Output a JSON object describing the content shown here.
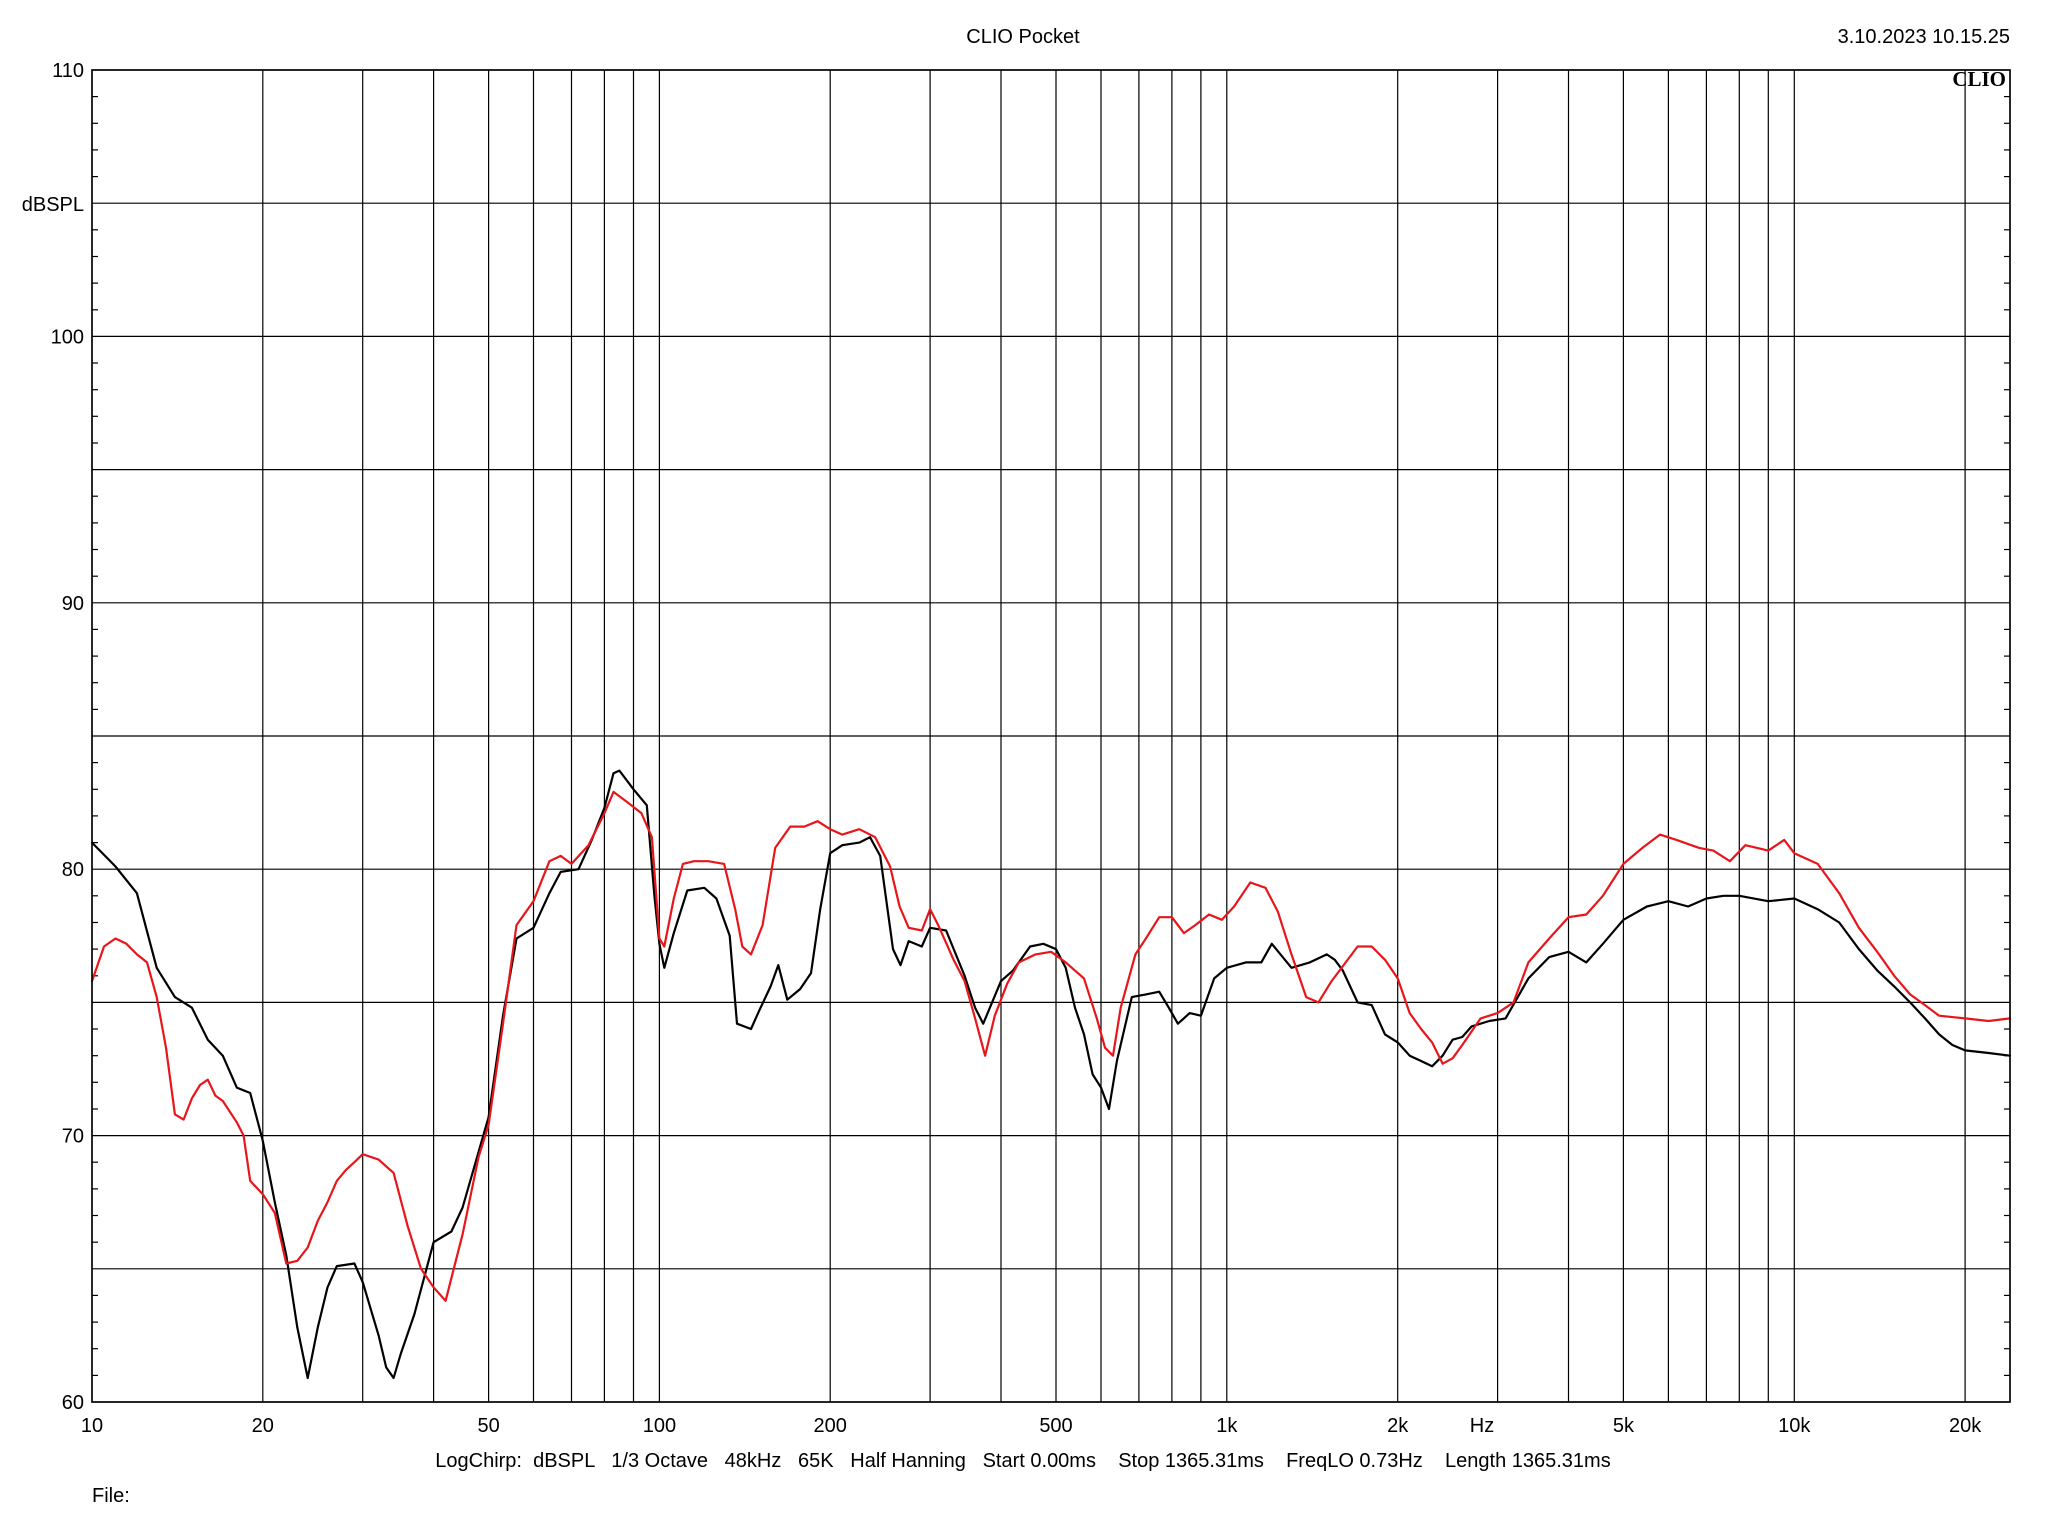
{
  "header": {
    "app_title": "CLIO Pocket",
    "timestamp": "3.10.2023 10.15.25",
    "logo_text": "CLIO"
  },
  "footer": {
    "settings_line": "LogChirp:  dBSPL   1/3 Octave   48kHz   65K   Half Hanning   Start 0.00ms    Stop 1365.31ms    FreqLO 0.73Hz    Length 1365.31ms",
    "file_label": "File:"
  },
  "chart_data": {
    "type": "line",
    "xscale": "log",
    "xlim": [
      10,
      24000
    ],
    "ylim": [
      60,
      110
    ],
    "ylabel": "dBSPL",
    "xunit_label": "Hz",
    "grid": true,
    "x_tick_labels": [
      {
        "value": 10,
        "label": "10"
      },
      {
        "value": 20,
        "label": "20"
      },
      {
        "value": 50,
        "label": "50"
      },
      {
        "value": 100,
        "label": "100"
      },
      {
        "value": 200,
        "label": "200"
      },
      {
        "value": 500,
        "label": "500"
      },
      {
        "value": 1000,
        "label": "1k"
      },
      {
        "value": 2000,
        "label": "2k"
      },
      {
        "value": 5000,
        "label": "5k"
      },
      {
        "value": 10000,
        "label": "10k"
      },
      {
        "value": 20000,
        "label": "20k"
      }
    ],
    "y_tick_labels": [
      {
        "value": 60,
        "label": "60"
      },
      {
        "value": 70,
        "label": "70"
      },
      {
        "value": 80,
        "label": "80"
      },
      {
        "value": 90,
        "label": "90"
      },
      {
        "value": 100,
        "label": "100"
      },
      {
        "value": 110,
        "label": "110"
      }
    ],
    "y_grid_values": [
      60,
      65,
      70,
      75,
      80,
      85,
      90,
      95,
      100,
      105,
      110
    ],
    "x_grid_values": [
      10,
      20,
      30,
      40,
      50,
      60,
      70,
      80,
      90,
      100,
      200,
      300,
      400,
      500,
      600,
      700,
      800,
      900,
      1000,
      2000,
      3000,
      4000,
      5000,
      6000,
      7000,
      8000,
      9000,
      10000,
      20000,
      24000
    ],
    "series": [
      {
        "color": "#000000",
        "points": [
          [
            10,
            81.0
          ],
          [
            11,
            80.1
          ],
          [
            12,
            79.1
          ],
          [
            13,
            76.3
          ],
          [
            14,
            75.2
          ],
          [
            15,
            74.8
          ],
          [
            16,
            73.6
          ],
          [
            17,
            73.0
          ],
          [
            18,
            71.8
          ],
          [
            19,
            71.6
          ],
          [
            20,
            69.8
          ],
          [
            21,
            67.5
          ],
          [
            22,
            65.5
          ],
          [
            23,
            62.8
          ],
          [
            24,
            60.9
          ],
          [
            25,
            62.8
          ],
          [
            26,
            64.3
          ],
          [
            27,
            65.1
          ],
          [
            29,
            65.2
          ],
          [
            30,
            64.5
          ],
          [
            32,
            62.5
          ],
          [
            33,
            61.3
          ],
          [
            34,
            60.9
          ],
          [
            35,
            61.8
          ],
          [
            37,
            63.3
          ],
          [
            40,
            66.0
          ],
          [
            43,
            66.4
          ],
          [
            45,
            67.3
          ],
          [
            50,
            70.7
          ],
          [
            53,
            74.5
          ],
          [
            56,
            77.4
          ],
          [
            60,
            77.8
          ],
          [
            64,
            79.1
          ],
          [
            67,
            79.9
          ],
          [
            72,
            80.0
          ],
          [
            76,
            81.1
          ],
          [
            80,
            82.3
          ],
          [
            83,
            83.6
          ],
          [
            85,
            83.7
          ],
          [
            90,
            83.0
          ],
          [
            95,
            82.4
          ],
          [
            98,
            79.0
          ],
          [
            100,
            77.2
          ],
          [
            102,
            76.3
          ],
          [
            106,
            77.6
          ],
          [
            112,
            79.2
          ],
          [
            120,
            79.3
          ],
          [
            126,
            78.9
          ],
          [
            133,
            77.5
          ],
          [
            137,
            74.2
          ],
          [
            145,
            74.0
          ],
          [
            150,
            74.7
          ],
          [
            157,
            75.6
          ],
          [
            162,
            76.4
          ],
          [
            168,
            75.1
          ],
          [
            177,
            75.5
          ],
          [
            185,
            76.1
          ],
          [
            192,
            78.5
          ],
          [
            200,
            80.6
          ],
          [
            210,
            80.9
          ],
          [
            225,
            81.0
          ],
          [
            235,
            81.2
          ],
          [
            245,
            80.5
          ],
          [
            258,
            77.0
          ],
          [
            266,
            76.4
          ],
          [
            275,
            77.3
          ],
          [
            290,
            77.1
          ],
          [
            300,
            77.8
          ],
          [
            320,
            77.7
          ],
          [
            345,
            76.0
          ],
          [
            360,
            74.8
          ],
          [
            372,
            74.2
          ],
          [
            400,
            75.8
          ],
          [
            420,
            76.2
          ],
          [
            450,
            77.1
          ],
          [
            475,
            77.2
          ],
          [
            500,
            77.0
          ],
          [
            520,
            76.3
          ],
          [
            540,
            74.8
          ],
          [
            560,
            73.8
          ],
          [
            580,
            72.3
          ],
          [
            600,
            71.8
          ],
          [
            620,
            71.0
          ],
          [
            640,
            72.8
          ],
          [
            680,
            75.2
          ],
          [
            720,
            75.3
          ],
          [
            760,
            75.4
          ],
          [
            790,
            74.8
          ],
          [
            820,
            74.2
          ],
          [
            860,
            74.6
          ],
          [
            900,
            74.5
          ],
          [
            950,
            75.9
          ],
          [
            1000,
            76.3
          ],
          [
            1080,
            76.5
          ],
          [
            1150,
            76.5
          ],
          [
            1200,
            77.2
          ],
          [
            1300,
            76.3
          ],
          [
            1400,
            76.5
          ],
          [
            1500,
            76.8
          ],
          [
            1550,
            76.6
          ],
          [
            1600,
            76.2
          ],
          [
            1700,
            75.0
          ],
          [
            1800,
            74.9
          ],
          [
            1900,
            73.8
          ],
          [
            2000,
            73.5
          ],
          [
            2100,
            73.0
          ],
          [
            2200,
            72.8
          ],
          [
            2300,
            72.6
          ],
          [
            2400,
            73.0
          ],
          [
            2500,
            73.6
          ],
          [
            2600,
            73.7
          ],
          [
            2700,
            74.1
          ],
          [
            2900,
            74.3
          ],
          [
            3100,
            74.4
          ],
          [
            3400,
            75.9
          ],
          [
            3700,
            76.7
          ],
          [
            4000,
            76.9
          ],
          [
            4300,
            76.5
          ],
          [
            4600,
            77.2
          ],
          [
            5000,
            78.1
          ],
          [
            5500,
            78.6
          ],
          [
            6000,
            78.8
          ],
          [
            6500,
            78.6
          ],
          [
            7000,
            78.9
          ],
          [
            7500,
            79.0
          ],
          [
            8000,
            79.0
          ],
          [
            9000,
            78.8
          ],
          [
            10000,
            78.9
          ],
          [
            11000,
            78.5
          ],
          [
            12000,
            78.0
          ],
          [
            13000,
            77.0
          ],
          [
            14000,
            76.2
          ],
          [
            15000,
            75.6
          ],
          [
            16000,
            75.0
          ],
          [
            17000,
            74.4
          ],
          [
            18000,
            73.8
          ],
          [
            19000,
            73.4
          ],
          [
            20000,
            73.2
          ],
          [
            22000,
            73.1
          ],
          [
            24000,
            73.0
          ]
        ]
      },
      {
        "color": "#e8161a",
        "points": [
          [
            10,
            75.8
          ],
          [
            10.5,
            77.1
          ],
          [
            11,
            77.4
          ],
          [
            11.5,
            77.2
          ],
          [
            12,
            76.8
          ],
          [
            12.5,
            76.5
          ],
          [
            13,
            75.2
          ],
          [
            13.5,
            73.3
          ],
          [
            14,
            70.8
          ],
          [
            14.5,
            70.6
          ],
          [
            15,
            71.4
          ],
          [
            15.5,
            71.9
          ],
          [
            16,
            72.1
          ],
          [
            16.5,
            71.5
          ],
          [
            17,
            71.3
          ],
          [
            18,
            70.5
          ],
          [
            18.5,
            70.0
          ],
          [
            19,
            68.3
          ],
          [
            20,
            67.8
          ],
          [
            21,
            67.1
          ],
          [
            22,
            65.2
          ],
          [
            23,
            65.3
          ],
          [
            24,
            65.8
          ],
          [
            25,
            66.8
          ],
          [
            26,
            67.5
          ],
          [
            27,
            68.3
          ],
          [
            28,
            68.7
          ],
          [
            29,
            69.0
          ],
          [
            30,
            69.3
          ],
          [
            32,
            69.1
          ],
          [
            34,
            68.6
          ],
          [
            36,
            66.6
          ],
          [
            38,
            65.0
          ],
          [
            40,
            64.3
          ],
          [
            42,
            63.8
          ],
          [
            45,
            66.3
          ],
          [
            48,
            69.2
          ],
          [
            50,
            70.4
          ],
          [
            53,
            74.2
          ],
          [
            56,
            77.9
          ],
          [
            60,
            78.8
          ],
          [
            64,
            80.3
          ],
          [
            67,
            80.5
          ],
          [
            70,
            80.2
          ],
          [
            75,
            80.9
          ],
          [
            80,
            82.1
          ],
          [
            83,
            82.9
          ],
          [
            88,
            82.5
          ],
          [
            93,
            82.1
          ],
          [
            97,
            81.2
          ],
          [
            100,
            77.4
          ],
          [
            102,
            77.1
          ],
          [
            106,
            78.9
          ],
          [
            110,
            80.2
          ],
          [
            115,
            80.3
          ],
          [
            122,
            80.3
          ],
          [
            130,
            80.2
          ],
          [
            136,
            78.5
          ],
          [
            140,
            77.1
          ],
          [
            145,
            76.8
          ],
          [
            152,
            77.9
          ],
          [
            160,
            80.8
          ],
          [
            170,
            81.6
          ],
          [
            180,
            81.6
          ],
          [
            190,
            81.8
          ],
          [
            200,
            81.5
          ],
          [
            210,
            81.3
          ],
          [
            225,
            81.5
          ],
          [
            240,
            81.2
          ],
          [
            255,
            80.1
          ],
          [
            265,
            78.6
          ],
          [
            275,
            77.8
          ],
          [
            290,
            77.7
          ],
          [
            300,
            78.5
          ],
          [
            310,
            77.9
          ],
          [
            330,
            76.6
          ],
          [
            345,
            75.8
          ],
          [
            360,
            74.4
          ],
          [
            375,
            73.0
          ],
          [
            390,
            74.5
          ],
          [
            410,
            75.7
          ],
          [
            430,
            76.5
          ],
          [
            460,
            76.8
          ],
          [
            490,
            76.9
          ],
          [
            520,
            76.5
          ],
          [
            560,
            75.9
          ],
          [
            590,
            74.4
          ],
          [
            610,
            73.3
          ],
          [
            630,
            73.0
          ],
          [
            650,
            74.8
          ],
          [
            690,
            76.8
          ],
          [
            720,
            77.4
          ],
          [
            760,
            78.2
          ],
          [
            800,
            78.2
          ],
          [
            840,
            77.6
          ],
          [
            880,
            77.9
          ],
          [
            930,
            78.3
          ],
          [
            980,
            78.1
          ],
          [
            1030,
            78.6
          ],
          [
            1100,
            79.5
          ],
          [
            1170,
            79.3
          ],
          [
            1230,
            78.4
          ],
          [
            1300,
            76.8
          ],
          [
            1380,
            75.2
          ],
          [
            1450,
            75.0
          ],
          [
            1530,
            75.8
          ],
          [
            1620,
            76.5
          ],
          [
            1700,
            77.1
          ],
          [
            1800,
            77.1
          ],
          [
            1900,
            76.6
          ],
          [
            2000,
            75.9
          ],
          [
            2100,
            74.6
          ],
          [
            2200,
            74.0
          ],
          [
            2300,
            73.5
          ],
          [
            2400,
            72.7
          ],
          [
            2500,
            72.9
          ],
          [
            2600,
            73.4
          ],
          [
            2800,
            74.4
          ],
          [
            3000,
            74.6
          ],
          [
            3200,
            75.0
          ],
          [
            3400,
            76.5
          ],
          [
            3700,
            77.4
          ],
          [
            4000,
            78.2
          ],
          [
            4300,
            78.3
          ],
          [
            4600,
            79.0
          ],
          [
            5000,
            80.2
          ],
          [
            5400,
            80.8
          ],
          [
            5800,
            81.3
          ],
          [
            6200,
            81.1
          ],
          [
            6800,
            80.8
          ],
          [
            7200,
            80.7
          ],
          [
            7700,
            80.3
          ],
          [
            8200,
            80.9
          ],
          [
            9000,
            80.7
          ],
          [
            9600,
            81.1
          ],
          [
            10000,
            80.6
          ],
          [
            11000,
            80.2
          ],
          [
            12000,
            79.1
          ],
          [
            13000,
            77.8
          ],
          [
            14000,
            76.9
          ],
          [
            15000,
            76.0
          ],
          [
            16000,
            75.3
          ],
          [
            17000,
            74.9
          ],
          [
            18000,
            74.5
          ],
          [
            20000,
            74.4
          ],
          [
            22000,
            74.3
          ],
          [
            24000,
            74.4
          ]
        ]
      }
    ]
  }
}
